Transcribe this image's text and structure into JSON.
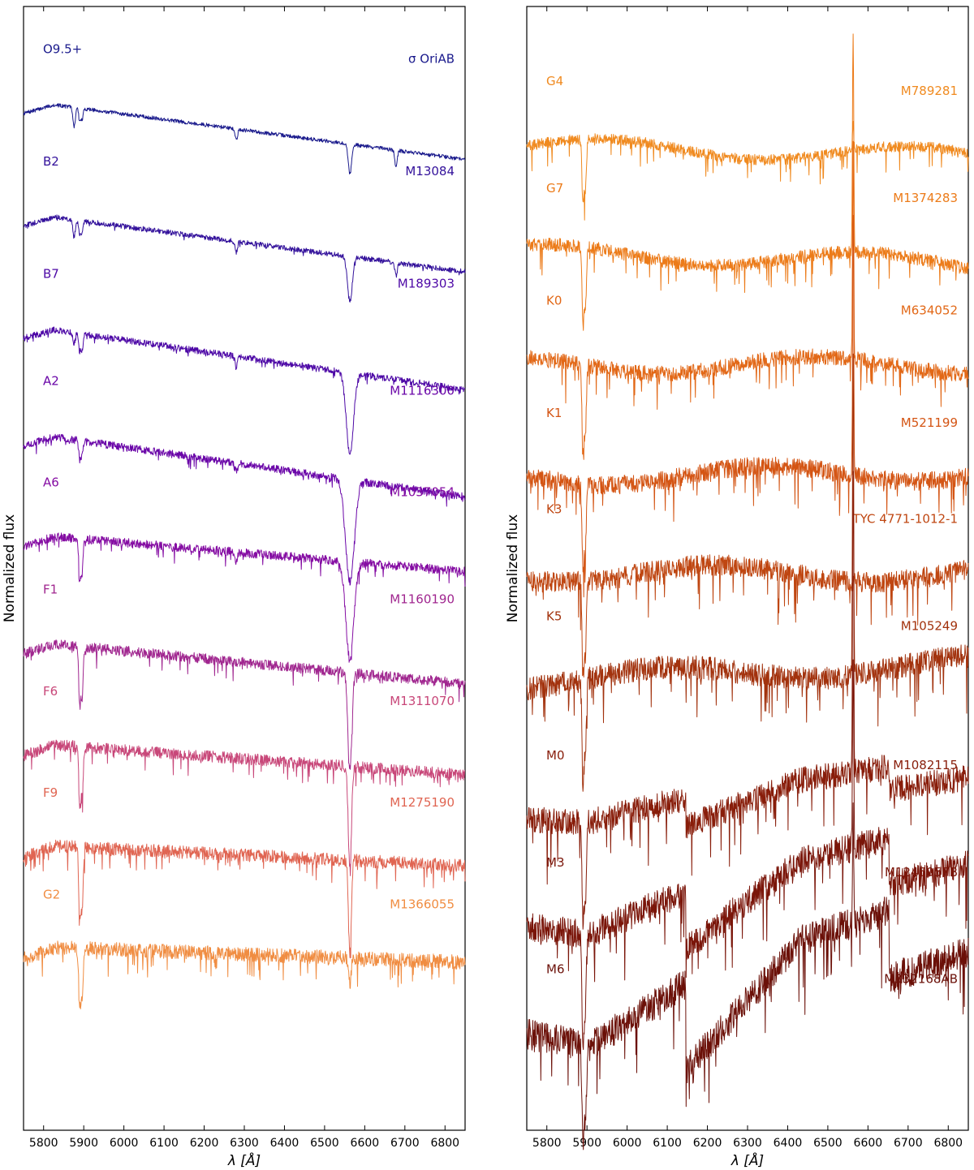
{
  "chart_data": [
    {
      "type": "line",
      "panel": "left",
      "xlabel": "λ [Å]",
      "ylabel": "Normalized flux",
      "xlim": [
        5750,
        6850
      ],
      "xticks": [
        5800,
        5900,
        6000,
        6100,
        6200,
        6300,
        6400,
        6500,
        6600,
        6700,
        6800
      ],
      "grid": false,
      "series": [
        {
          "sptype": "O9.5+",
          "name": "σ OriAB",
          "color": "#1a1a8c",
          "offset": 8.6,
          "tilt": -0.55,
          "lines": [
            [
              5876,
              0.18,
              3
            ],
            [
              5890,
              0.12,
              2.5
            ],
            [
              5896,
              0.1,
              2.5
            ],
            [
              6280,
              0.1,
              3
            ],
            [
              6563,
              0.28,
              4
            ],
            [
              6678,
              0.15,
              3
            ]
          ]
        },
        {
          "sptype": "B2",
          "name": "M13084",
          "color": "#33119b",
          "offset": 7.55,
          "tilt": -0.55,
          "lines": [
            [
              5876,
              0.16,
              3
            ],
            [
              5890,
              0.13,
              2.5
            ],
            [
              5896,
              0.11,
              2.5
            ],
            [
              6280,
              0.1,
              3
            ],
            [
              6563,
              0.42,
              6
            ],
            [
              6678,
              0.12,
              3
            ]
          ]
        },
        {
          "sptype": "B7",
          "name": "M189303",
          "color": "#4d08a6",
          "offset": 6.5,
          "tilt": -0.6,
          "lines": [
            [
              5876,
              0.1,
              3
            ],
            [
              5890,
              0.16,
              2.5
            ],
            [
              5896,
              0.14,
              2.5
            ],
            [
              6280,
              0.1,
              3
            ],
            [
              6563,
              0.75,
              9
            ]
          ]
        },
        {
          "sptype": "A2",
          "name": "M1116300",
          "color": "#6a06a8",
          "offset": 5.5,
          "tilt": -0.6,
          "lines": [
            [
              5890,
              0.18,
              2.5
            ],
            [
              5896,
              0.14,
              2.5
            ],
            [
              6280,
              0.08,
              3
            ],
            [
              6563,
              0.95,
              11
            ]
          ]
        },
        {
          "sptype": "A6",
          "name": "M1037054",
          "color": "#850da3",
          "offset": 4.55,
          "tilt": -0.35,
          "lines": [
            [
              5890,
              0.4,
              2.5
            ],
            [
              5896,
              0.3,
              2.5
            ],
            [
              6280,
              0.1,
              3
            ],
            [
              6563,
              0.9,
              10
            ]
          ]
        },
        {
          "sptype": "F1",
          "name": "M1160190",
          "color": "#a0268f",
          "offset": 3.55,
          "tilt": -0.4,
          "lines": [
            [
              5890,
              0.55,
              2.5
            ],
            [
              5896,
              0.45,
              2.5
            ],
            [
              6563,
              0.9,
              5
            ]
          ]
        },
        {
          "sptype": "F6",
          "name": "M1311070",
          "color": "#c84779",
          "offset": 2.6,
          "tilt": -0.3,
          "lines": [
            [
              5890,
              0.55,
              2.5
            ],
            [
              5896,
              0.45,
              2.5
            ],
            [
              6563,
              0.95,
              4
            ]
          ]
        },
        {
          "sptype": "F9",
          "name": "M1275190",
          "color": "#e06552",
          "offset": 1.65,
          "tilt": -0.2,
          "lines": [
            [
              5890,
              0.65,
              2.5
            ],
            [
              5896,
              0.55,
              2.5
            ],
            [
              6563,
              0.9,
              3.5
            ]
          ]
        },
        {
          "sptype": "G2",
          "name": "M1366055",
          "color": "#f08d42",
          "offset": 0.7,
          "tilt": -0.15,
          "lines": [
            [
              5890,
              0.55,
              2.5
            ],
            [
              5896,
              0.45,
              2.5
            ],
            [
              6563,
              0.25,
              3
            ]
          ]
        }
      ]
    },
    {
      "type": "line",
      "panel": "right",
      "xlabel": "λ [Å]",
      "ylabel": "Normalized flux",
      "xlim": [
        5750,
        6850
      ],
      "xticks": [
        5800,
        5900,
        6000,
        6100,
        6200,
        6300,
        6400,
        6500,
        6600,
        6700,
        6800
      ],
      "grid": false,
      "series": [
        {
          "sptype": "G4",
          "name": "M789281",
          "color": "#f08a1f",
          "offset": 8.3,
          "tilt": -0.1,
          "lines": [
            [
              5890,
              0.55,
              2.5
            ],
            [
              5896,
              0.45,
              2.5
            ]
          ],
          "emission": [
            6563,
            0.25
          ]
        },
        {
          "sptype": "G7",
          "name": "M1374283",
          "color": "#ec7b19",
          "offset": 7.3,
          "tilt": -0.1,
          "lines": [
            [
              5890,
              0.7,
              2.5
            ],
            [
              5896,
              0.55,
              2.5
            ]
          ],
          "emission": [
            6563,
            2.1
          ]
        },
        {
          "sptype": "K0",
          "name": "M634052",
          "color": "#e26817",
          "offset": 6.25,
          "tilt": 0.0,
          "lines": [
            [
              5890,
              0.75,
              2.5
            ],
            [
              5896,
              0.6,
              2.5
            ]
          ],
          "emission": [
            6563,
            2.0
          ]
        },
        {
          "sptype": "K1",
          "name": "M521199",
          "color": "#d45514",
          "offset": 5.2,
          "tilt": 0.05,
          "lines": [
            [
              5890,
              0.8,
              2.5
            ],
            [
              5896,
              0.6,
              2.5
            ]
          ],
          "emission": [
            6563,
            2.4
          ]
        },
        {
          "sptype": "K3",
          "name": "TYC 4771-1012-1",
          "color": "#bf4611",
          "offset": 4.3,
          "tilt": 0.0,
          "lines": [
            [
              5890,
              0.85,
              2.5
            ],
            [
              5896,
              0.65,
              2.5
            ]
          ],
          "emission": [
            6563,
            0.0
          ]
        },
        {
          "sptype": "K5",
          "name": "M105249",
          "color": "#a2320d",
          "offset": 3.3,
          "tilt": 0.15,
          "lines": [
            [
              5890,
              0.95,
              2.5
            ],
            [
              5896,
              0.7,
              2.5
            ]
          ],
          "emission": [
            6563,
            3.0
          ]
        },
        {
          "sptype": "M0",
          "name": "M1082115",
          "color": "#881d0a",
          "offset": 2.0,
          "tilt": 0.6,
          "lines": [
            [
              5890,
              0.95,
              2.5
            ],
            [
              5896,
              0.7,
              2.5
            ]
          ],
          "emission": [
            6563,
            2.8
          ]
        },
        {
          "sptype": "M3",
          "name": "M1245057B",
          "color": "#7a1509",
          "offset": 1.0,
          "tilt": 1.0,
          "lines": [
            [
              5890,
              0.95,
              2.5
            ],
            [
              5896,
              0.7,
              2.5
            ]
          ],
          "emission": [
            6563,
            1.8
          ]
        },
        {
          "sptype": "M6",
          "name": "M332168AB",
          "color": "#6b1008",
          "offset": 0.0,
          "tilt": 1.4,
          "lines": [
            [
              5890,
              0.95,
              2.5
            ],
            [
              5896,
              0.7,
              2.5
            ]
          ],
          "emission": [
            6563,
            1.0
          ]
        }
      ]
    }
  ]
}
